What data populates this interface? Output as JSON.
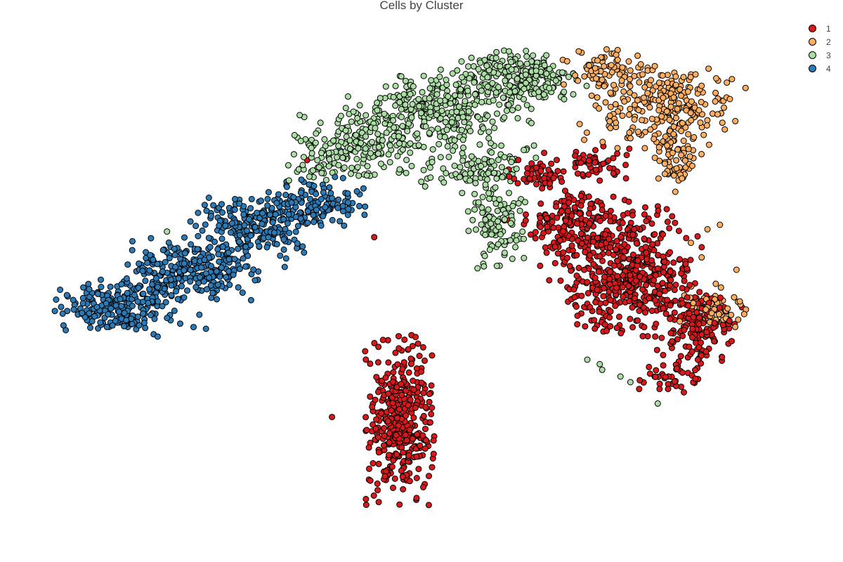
{
  "chart_data": {
    "type": "scatter",
    "title": "Cells by Cluster",
    "xlabel": "",
    "ylabel": "",
    "grid": false,
    "axes_visible": false,
    "legend_position": "top-right",
    "xlim": [
      0,
      100
    ],
    "ylim": [
      0,
      100
    ],
    "series": [
      {
        "name": "1",
        "color": "#d7191c",
        "density_regions": [
          {
            "cx": 64.0,
            "cy": 69.0,
            "sx": 1.6,
            "sy": 1.3,
            "n": 55
          },
          {
            "cx": 71.0,
            "cy": 71.0,
            "sx": 2.0,
            "sy": 1.5,
            "n": 50
          },
          {
            "cx": 68.0,
            "cy": 60.0,
            "sx": 2.5,
            "sy": 3.2,
            "n": 150
          },
          {
            "cx": 75.0,
            "cy": 52.0,
            "sx": 4.0,
            "sy": 5.5,
            "n": 520
          },
          {
            "cx": 83.5,
            "cy": 42.0,
            "sx": 2.3,
            "sy": 3.2,
            "n": 150
          },
          {
            "cx": 80.0,
            "cy": 32.5,
            "sx": 2.0,
            "sy": 1.5,
            "n": 40
          },
          {
            "cx": 47.5,
            "cy": 25.0,
            "sx": 1.9,
            "sy": 6.5,
            "n": 380
          }
        ],
        "scatter_points": [
          [
            39.2,
            25.8
          ],
          [
            43.2,
            37.5
          ],
          [
            46.3,
            15.8
          ],
          [
            50.2,
            38.2
          ],
          [
            43.3,
            11.2
          ],
          [
            64.8,
            72.8
          ],
          [
            60.5,
            60.8
          ],
          [
            36.2,
            71.5
          ],
          [
            44.3,
            57.8
          ],
          [
            79.8,
            54.8
          ]
        ]
      },
      {
        "name": "2",
        "color": "#fdae61",
        "density_regions": [
          {
            "cx": 72.0,
            "cy": 87.5,
            "sx": 2.5,
            "sy": 1.8,
            "n": 70
          },
          {
            "cx": 79.5,
            "cy": 81.0,
            "sx": 4.2,
            "sy": 3.5,
            "n": 260
          },
          {
            "cx": 80.5,
            "cy": 71.5,
            "sx": 1.4,
            "sy": 2.5,
            "n": 60
          },
          {
            "cx": 85.0,
            "cy": 45.0,
            "sx": 2.0,
            "sy": 2.2,
            "n": 70
          }
        ],
        "scatter_points": [
          [
            84.5,
            59.2
          ],
          [
            82.5,
            56.8
          ],
          [
            83.8,
            54.2
          ],
          [
            85.5,
            49.5
          ],
          [
            88.0,
            52.0
          ],
          [
            86.0,
            60.0
          ]
        ]
      },
      {
        "name": "3",
        "color": "#abdda4",
        "density_regions": [
          {
            "cx": 61.0,
            "cy": 86.0,
            "sx": 3.8,
            "sy": 2.3,
            "n": 250
          },
          {
            "cx": 52.0,
            "cy": 80.0,
            "sx": 4.8,
            "sy": 3.0,
            "n": 300
          },
          {
            "cx": 42.0,
            "cy": 74.0,
            "sx": 3.5,
            "sy": 2.8,
            "n": 180
          },
          {
            "cx": 57.0,
            "cy": 70.0,
            "sx": 3.0,
            "sy": 2.0,
            "n": 110
          },
          {
            "cx": 59.0,
            "cy": 60.0,
            "sx": 1.6,
            "sy": 4.0,
            "n": 100
          },
          {
            "cx": 36.5,
            "cy": 70.0,
            "sx": 1.5,
            "sy": 1.2,
            "n": 20
          }
        ],
        "scatter_points": [
          [
            19.3,
            58.8
          ],
          [
            36.0,
            75.2
          ],
          [
            71.8,
            34.2
          ],
          [
            74.0,
            33.0
          ],
          [
            78.5,
            28.2
          ],
          [
            71.5,
            35.2
          ],
          [
            70.0,
            36.0
          ],
          [
            75.2,
            32.0
          ]
        ]
      },
      {
        "name": "4",
        "color": "#2c7bb6",
        "density_regions": [
          {
            "cx": 13.5,
            "cy": 45.5,
            "sx": 3.3,
            "sy": 2.3,
            "n": 220
          },
          {
            "cx": 22.0,
            "cy": 52.0,
            "sx": 3.5,
            "sy": 2.5,
            "n": 260
          },
          {
            "cx": 30.5,
            "cy": 60.0,
            "sx": 3.5,
            "sy": 2.5,
            "n": 230
          },
          {
            "cx": 37.5,
            "cy": 64.0,
            "sx": 2.5,
            "sy": 2.0,
            "n": 110
          }
        ],
        "scatter_points": [
          [
            22.5,
            41.8
          ],
          [
            24.0,
            41.5
          ],
          [
            33.5,
            52.5
          ],
          [
            23.2,
            44.0
          ],
          [
            40.2,
            73.2
          ]
        ]
      }
    ]
  }
}
